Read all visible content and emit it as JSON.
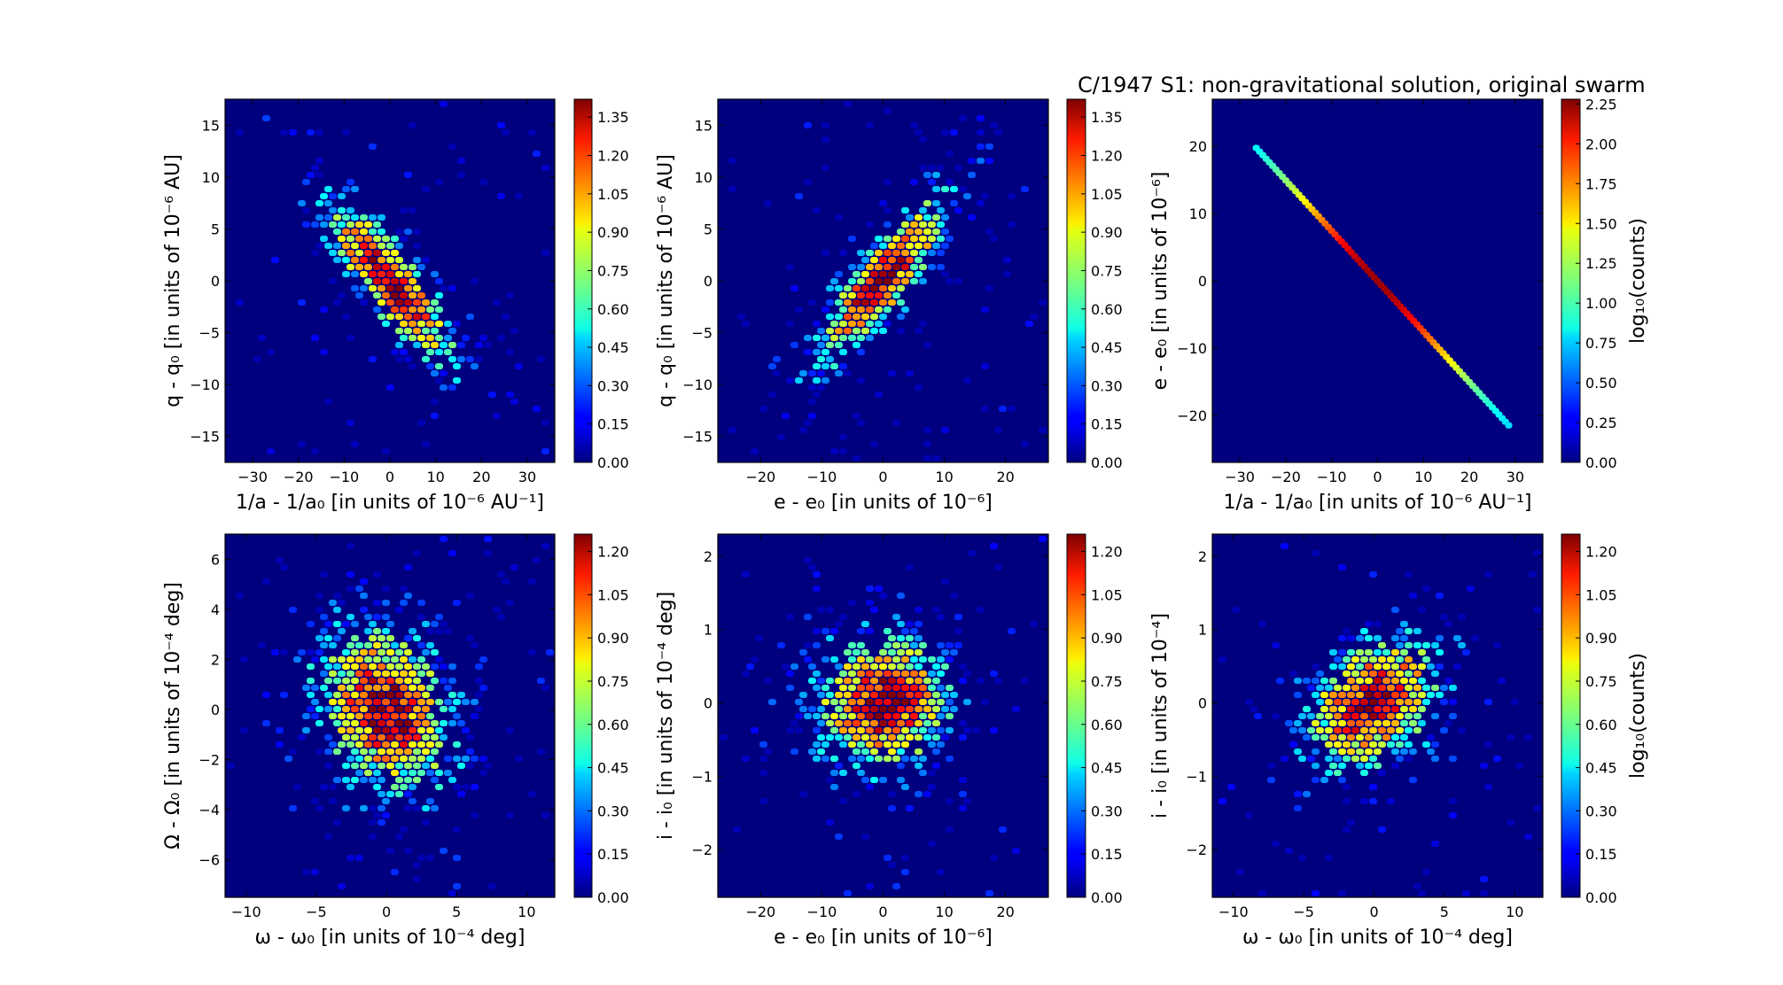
{
  "figure_title": "C/1947 S1:  non-gravitational solution, original swarm",
  "chart_data": [
    {
      "type": "heatmap",
      "xlabel": "1/a - 1/a₀ [in units of 10⁻⁶ AU⁻¹]",
      "ylabel": "q - q₀ [in units of 10⁻⁶ AU]",
      "xlim": [
        -36,
        36
      ],
      "ylim": [
        -17.5,
        17.5
      ],
      "xticks": [
        -30,
        -20,
        -10,
        0,
        10,
        20,
        30
      ],
      "yticks": [
        -15,
        -10,
        -5,
        0,
        5,
        10,
        15
      ],
      "colorbar": {
        "vmin": 0,
        "vmax": 1.42,
        "ticks": [
          "0.00",
          "0.15",
          "0.30",
          "0.45",
          "0.60",
          "0.75",
          "0.90",
          "1.05",
          "1.20",
          "1.35"
        ],
        "label": ""
      },
      "distribution": {
        "corr": -0.85,
        "sx": 10,
        "sy": 5.5
      }
    },
    {
      "type": "heatmap",
      "xlabel": "e - e₀ [in units of 10⁻⁶]",
      "ylabel": "q - q₀ [in units of 10⁻⁶ AU]",
      "xlim": [
        -27,
        27
      ],
      "ylim": [
        -17.5,
        17.5
      ],
      "xticks": [
        -20,
        -10,
        0,
        10,
        20
      ],
      "yticks": [
        -15,
        -10,
        -5,
        0,
        5,
        10,
        15
      ],
      "colorbar": {
        "vmin": 0,
        "vmax": 1.42,
        "ticks": [
          "0.00",
          "0.15",
          "0.30",
          "0.45",
          "0.60",
          "0.75",
          "0.90",
          "1.05",
          "1.20",
          "1.35"
        ],
        "label": ""
      },
      "distribution": {
        "corr": 0.85,
        "sx": 7.5,
        "sy": 5.5
      }
    },
    {
      "type": "heatmap",
      "xlabel": "1/a - 1/a₀ [in units of 10⁻⁶ AU⁻¹]",
      "ylabel": "e - e₀ [in units of 10⁻⁶]",
      "xlim": [
        -36,
        36
      ],
      "ylim": [
        -27,
        27
      ],
      "xticks": [
        -30,
        -20,
        -10,
        0,
        10,
        20,
        30
      ],
      "yticks": [
        -20,
        -10,
        0,
        10,
        20
      ],
      "colorbar": {
        "vmin": 0,
        "vmax": 2.28,
        "ticks": [
          "0.00",
          "0.25",
          "0.50",
          "0.75",
          "1.00",
          "1.25",
          "1.50",
          "1.75",
          "2.00",
          "2.25"
        ],
        "label": "log₁₀(counts)"
      },
      "line": {
        "x": [
          -36,
          -30,
          -20,
          -10,
          0,
          10,
          20,
          30,
          36
        ],
        "y": [
          27,
          22.5,
          15,
          7.5,
          0,
          -7.5,
          -15,
          -22.5,
          -27
        ]
      }
    },
    {
      "type": "heatmap",
      "xlabel": "ω - ω₀ [in units of 10⁻⁴ deg]",
      "ylabel": "Ω - Ω₀ [in units of 10⁻⁴ deg]",
      "xlim": [
        -11.5,
        12
      ],
      "ylim": [
        -7.5,
        7
      ],
      "xticks": [
        -10,
        -5,
        0,
        5,
        10
      ],
      "yticks": [
        -6,
        -4,
        -2,
        0,
        2,
        4,
        6
      ],
      "colorbar": {
        "vmin": 0,
        "vmax": 1.26,
        "ticks": [
          "0.00",
          "0.15",
          "0.30",
          "0.45",
          "0.60",
          "0.75",
          "0.90",
          "1.05",
          "1.20"
        ],
        "label": ""
      },
      "distribution": {
        "corr": -0.25,
        "sx": 3.3,
        "sy": 2.3
      }
    },
    {
      "type": "heatmap",
      "xlabel": "e - e₀ [in units of 10⁻⁶]",
      "ylabel": "i - i₀ [in units of 10⁻⁴ deg]",
      "xlim": [
        -27,
        27
      ],
      "ylim": [
        -2.65,
        2.3
      ],
      "xticks": [
        -20,
        -10,
        0,
        10,
        20
      ],
      "yticks": [
        -2,
        -1,
        0,
        1,
        2
      ],
      "colorbar": {
        "vmin": 0,
        "vmax": 1.26,
        "ticks": [
          "0.00",
          "0.15",
          "0.30",
          "0.45",
          "0.60",
          "0.75",
          "0.90",
          "1.05",
          "1.20"
        ],
        "label": ""
      },
      "distribution": {
        "corr": 0.05,
        "sx": 7.5,
        "sy": 0.62
      }
    },
    {
      "type": "heatmap",
      "xlabel": "ω - ω₀ [in units of 10⁻⁴ deg]",
      "ylabel": "i - i₀ [in units of 10⁻⁴]",
      "xlim": [
        -11.5,
        12
      ],
      "ylim": [
        -2.65,
        2.3
      ],
      "xticks": [
        -10,
        -5,
        0,
        5,
        10
      ],
      "yticks": [
        -2,
        -1,
        0,
        1,
        2
      ],
      "colorbar": {
        "vmin": 0,
        "vmax": 1.26,
        "ticks": [
          "0.00",
          "0.15",
          "0.30",
          "0.45",
          "0.60",
          "0.75",
          "0.90",
          "1.05",
          "1.20"
        ],
        "label": "log₁₀(counts)"
      },
      "distribution": {
        "corr": 0.35,
        "sx": 3.3,
        "sy": 0.62
      }
    }
  ]
}
